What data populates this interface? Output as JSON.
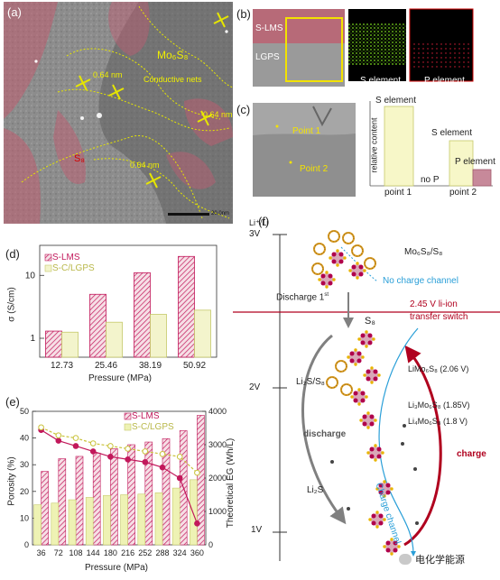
{
  "panel_a": {
    "label": "(a)",
    "mos_label": "Mo₆S₈",
    "s8_label": "S₈",
    "nets_label": "Conductive nets",
    "spacing": [
      "0.64 nm",
      "0.64 nm",
      "0.64 nm"
    ],
    "scale_text": "20.0nm"
  },
  "panel_b": {
    "label": "(b)",
    "top_label": "S-LMS",
    "bottom_label": "LGPS",
    "s_map": "S element",
    "p_map": "P element"
  },
  "panel_c": {
    "label": "(c)",
    "point1": "Point 1",
    "point2": "Point 2",
    "ylabel": "relative content",
    "bar_labels": [
      "S element",
      "no P",
      "S element",
      "P element"
    ],
    "xticks": [
      "point 1",
      "point 2"
    ]
  },
  "panel_d": {
    "label": "(d)",
    "ylabel": "σ (S/cm)",
    "xlabel": "Pressure (MPa)",
    "legend": [
      "S-LMS",
      "S-C/LGPS"
    ],
    "ytick_labels": [
      "1",
      "10"
    ],
    "colors": {
      "s_lms": "#c2185b",
      "lgps": "#c5c96a"
    }
  },
  "panel_e": {
    "label": "(e)",
    "ylabel_left": "Porosity (%)",
    "ylabel_right": "Theoretical EG (Wh/L)",
    "xlabel": "Pressure (MPa)",
    "legend": [
      "S-LMS",
      "S-C/LGPS"
    ],
    "left_ticks": [
      "0",
      "10",
      "20",
      "30",
      "40",
      "50"
    ],
    "right_ticks": [
      "0",
      "1000",
      "2000",
      "3000",
      "4000"
    ]
  },
  "panel_f": {
    "label": "(f)",
    "axis_title": "Li⁺/Li",
    "voltages": [
      "3V",
      "2V",
      "1V"
    ],
    "formula": "Mo₆S₈/S₈",
    "no_channel": "No charge channel",
    "discharge_first": "Discharge 1",
    "discharge_first_sup": "st",
    "switch_line1": "2.45 V  li-ion",
    "switch_line2": "transfer switch",
    "s8": "S₈",
    "li2s_s8": "Li₂S/S₈",
    "li2s": "Li₂S",
    "discharge": "discharge",
    "charge": "charge",
    "charge_channel": "Charge channel",
    "states": [
      "LiMo₆S₈  (2.06 V)",
      "Li₃Mo₆S₈   (1.85V)",
      "Li₄Mo₆S₈   (1.8 V)"
    ]
  },
  "watermark": "电化学能源",
  "chart_data": [
    {
      "type": "bar",
      "title": "",
      "xlabel": "Pressure (MPa)",
      "ylabel": "σ (S/cm)",
      "yscale": "log",
      "ylim": [
        0.5,
        30
      ],
      "categories": [
        "12.73",
        "25.46",
        "38.19",
        "50.92"
      ],
      "series": [
        {
          "name": "S-LMS",
          "values": [
            1.3,
            5.0,
            11.0,
            20.0
          ]
        },
        {
          "name": "S-C/LGPS",
          "values": [
            1.25,
            1.8,
            2.4,
            2.8
          ]
        }
      ],
      "legend": "top-left"
    },
    {
      "type": "bar",
      "title": "",
      "xlabel": "Pressure (MPa)",
      "ylabel": "Porosity (%)",
      "y2label": "Theoretical EG (Wh/L)",
      "ylim": [
        0,
        50
      ],
      "y2lim": [
        0,
        4000
      ],
      "categories": [
        "36",
        "72",
        "108",
        "144",
        "180",
        "216",
        "252",
        "288",
        "324",
        "360"
      ],
      "series": [
        {
          "name": "S-LMS",
          "type": "bar",
          "axis": "right",
          "values": [
            2200,
            2580,
            2650,
            2750,
            2880,
            3000,
            3080,
            3180,
            3420,
            3880
          ]
        },
        {
          "name": "S-C/LGPS",
          "type": "bar",
          "axis": "right",
          "values": [
            1200,
            1250,
            1350,
            1420,
            1480,
            1500,
            1520,
            1560,
            1700,
            1950
          ]
        },
        {
          "name": "S-LMS",
          "type": "line",
          "axis": "left",
          "values": [
            43,
            39,
            37,
            35,
            33,
            32,
            31,
            29,
            25,
            8
          ]
        },
        {
          "name": "S-C/LGPS",
          "type": "line",
          "axis": "left",
          "values": [
            44,
            41,
            40,
            38,
            37,
            36,
            35,
            34,
            33,
            27
          ]
        }
      ],
      "legend": "top-right"
    }
  ]
}
